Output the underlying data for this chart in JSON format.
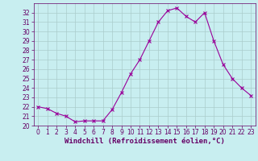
{
  "x": [
    0,
    1,
    2,
    3,
    4,
    5,
    6,
    7,
    8,
    9,
    10,
    11,
    12,
    13,
    14,
    15,
    16,
    17,
    18,
    19,
    20,
    21,
    22,
    23
  ],
  "y": [
    22.0,
    21.8,
    21.3,
    21.0,
    20.4,
    20.5,
    20.5,
    20.5,
    21.7,
    23.5,
    25.5,
    27.0,
    29.0,
    31.0,
    32.2,
    32.5,
    31.6,
    31.0,
    32.0,
    29.0,
    26.5,
    25.0,
    24.0,
    23.2
  ],
  "line_color": "#990099",
  "marker": "x",
  "bg_color": "#c8eef0",
  "grid_color": "#aacccc",
  "xlabel": "Windchill (Refroidissement éolien,°C)",
  "bottom_bar_color": "#660066",
  "xlim": [
    -0.5,
    23.5
  ],
  "ylim": [
    20,
    33
  ],
  "yticks": [
    20,
    21,
    22,
    23,
    24,
    25,
    26,
    27,
    28,
    29,
    30,
    31,
    32
  ],
  "xticks": [
    0,
    1,
    2,
    3,
    4,
    5,
    6,
    7,
    8,
    9,
    10,
    11,
    12,
    13,
    14,
    15,
    16,
    17,
    18,
    19,
    20,
    21,
    22,
    23
  ],
  "tick_color": "#660066",
  "label_color": "#660066",
  "label_fontsize": 6.5,
  "tick_fontsize": 5.5
}
